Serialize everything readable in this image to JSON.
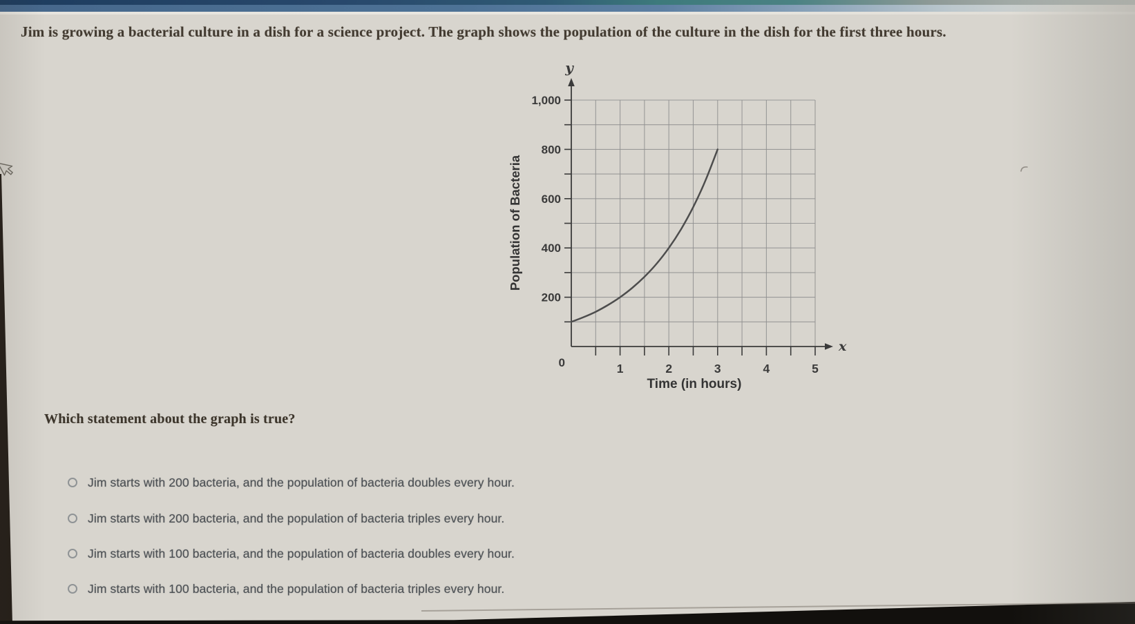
{
  "question": {
    "context": "Jim is growing a bacterial culture in a dish for a science project. The graph shows the population of the culture in the dish for the first three hours.",
    "prompt": "Which statement about the graph is true?"
  },
  "options": [
    {
      "label": "Jim starts with 200 bacteria, and the population of bacteria doubles every hour.",
      "selected": false
    },
    {
      "label": "Jim starts with 200 bacteria, and the population of bacteria triples every hour.",
      "selected": false
    },
    {
      "label": "Jim starts with 100 bacteria, and the population of bacteria doubles every hour.",
      "selected": false
    },
    {
      "label": "Jim starts with 100 bacteria, and the population of bacteria triples every hour.",
      "selected": false
    }
  ],
  "chart_data": {
    "type": "line",
    "title": "",
    "xlabel": "Time (in hours)",
    "ylabel": "Population of Bacteria",
    "axis_symbols": {
      "x": "x",
      "y": "y"
    },
    "origin_label": "0",
    "xlim": [
      0,
      5.4
    ],
    "ylim": [
      0,
      1080
    ],
    "x_ticks": [
      1,
      2,
      3,
      4,
      5
    ],
    "x_minor_step": 0.5,
    "y_ticks": [
      200,
      400,
      600,
      800,
      1000
    ],
    "y_tick_labels": [
      "200",
      "400",
      "600",
      "800",
      "1,000"
    ],
    "y_minor_step": 100,
    "grid": true,
    "legend_position": "none",
    "series": [
      {
        "name": "bacteria population",
        "x": [
          0,
          0.25,
          0.5,
          0.75,
          1,
          1.25,
          1.5,
          1.75,
          2,
          2.25,
          2.5,
          2.75,
          3
        ],
        "y": [
          100,
          119,
          141,
          168,
          200,
          238,
          283,
          336,
          400,
          476,
          566,
          673,
          800
        ]
      }
    ],
    "key_points": [
      [
        0,
        100
      ],
      [
        1,
        200
      ],
      [
        2,
        400
      ],
      [
        3,
        800
      ]
    ]
  },
  "colors": {
    "paper": "#d8d5ce",
    "top_bar_navy": "#1d3c5e",
    "top_bar_steel": "#4d7296",
    "top_bar_teal": "#3d7a7c",
    "question_ink": "#433b31",
    "option_ink": "#4c5054",
    "chart_line": "#4d4d4d",
    "grid_line": "#8f8f8f",
    "axis_ink": "#3a3a3a"
  }
}
